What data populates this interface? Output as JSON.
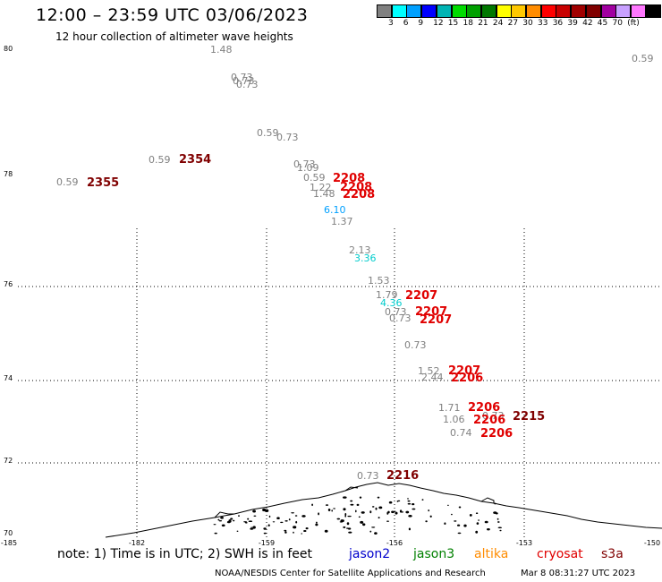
{
  "header": {
    "title": "12:00 – 23:59 UTC 03/06/2023",
    "subtitle": "12 hour collection of altimeter wave heights"
  },
  "colorbar": {
    "colors": [
      "#808080",
      "#00ffff",
      "#00a0ff",
      "#0000ff",
      "#00b4b4",
      "#00dc00",
      "#00a000",
      "#007800",
      "#ffff00",
      "#ffc800",
      "#ff8c00",
      "#ff0000",
      "#c80000",
      "#a00000",
      "#800000",
      "#a000a0",
      "#c8a0ff",
      "#ff78ff",
      "#000000"
    ],
    "labels": [
      "3",
      "6",
      "9",
      "12",
      "15",
      "18",
      "21",
      "24",
      "27",
      "30",
      "33",
      "36",
      "39",
      "42",
      "45",
      "70",
      "(ft)"
    ]
  },
  "map": {
    "lat_labels": [
      "80",
      "78",
      "76",
      "74",
      "72",
      "70"
    ],
    "lon_labels": [
      "-185",
      "-182",
      "-159",
      "-156",
      "-153",
      "-150"
    ]
  },
  "chart_data": {
    "type": "scatter",
    "heights_ft": [
      {
        "text": "1.48",
        "color": "#808080"
      },
      {
        "text": "0.59",
        "color": "#808080"
      },
      {
        "text": "0.73",
        "color": "#808080"
      },
      {
        "text": "0.73",
        "color": "#808080"
      },
      {
        "text": "0.73",
        "color": "#808080"
      },
      {
        "text": "0.59",
        "color": "#808080"
      },
      {
        "text": "0.73",
        "color": "#808080"
      },
      {
        "text": "0.59",
        "color": "#808080"
      },
      {
        "text": "0.73",
        "color": "#808080"
      },
      {
        "text": "1.09",
        "color": "#808080"
      },
      {
        "text": "0.59",
        "color": "#808080"
      },
      {
        "text": "1.22",
        "color": "#808080"
      },
      {
        "text": "1.48",
        "color": "#808080"
      },
      {
        "text": "6.10",
        "color": "#00a0ff"
      },
      {
        "text": "1.37",
        "color": "#808080"
      },
      {
        "text": "2.13",
        "color": "#808080"
      },
      {
        "text": "3.36",
        "color": "#00cccc"
      },
      {
        "text": "1.53",
        "color": "#808080"
      },
      {
        "text": "1.79",
        "color": "#808080"
      },
      {
        "text": "4.36",
        "color": "#00cccc"
      },
      {
        "text": "0.73",
        "color": "#808080"
      },
      {
        "text": "0.73",
        "color": "#808080"
      },
      {
        "text": "0.73",
        "color": "#808080"
      },
      {
        "text": "1.52",
        "color": "#808080"
      },
      {
        "text": "2.44",
        "color": "#808080"
      },
      {
        "text": "1.71",
        "color": "#808080"
      },
      {
        "text": "1.06",
        "color": "#808080"
      },
      {
        "text": "0.74",
        "color": "#808080"
      },
      {
        "text": "0.73",
        "color": "#808080"
      },
      {
        "text": "0.73",
        "color": "#808080"
      },
      {
        "text": "0.59",
        "color": "#808080"
      }
    ],
    "times_utc": [
      {
        "text": "2354",
        "color": "#800000"
      },
      {
        "text": "2355",
        "color": "#800000"
      },
      {
        "text": "2208",
        "color": "#e00000"
      },
      {
        "text": "2208",
        "color": "#e00000"
      },
      {
        "text": "2208",
        "color": "#e00000"
      },
      {
        "text": "2207",
        "color": "#e00000"
      },
      {
        "text": "2207",
        "color": "#e00000"
      },
      {
        "text": "2207",
        "color": "#e00000"
      },
      {
        "text": "2207",
        "color": "#e00000"
      },
      {
        "text": "2206",
        "color": "#e00000"
      },
      {
        "text": "2206",
        "color": "#e00000"
      },
      {
        "text": "2206",
        "color": "#e00000"
      },
      {
        "text": "2206",
        "color": "#e00000"
      },
      {
        "text": "2215",
        "color": "#800000"
      },
      {
        "text": "2216",
        "color": "#800000"
      }
    ]
  },
  "footer": {
    "note": "note:  1) Time is in UTC; 2) SWH is in feet",
    "satellites": [
      {
        "name": "jason2",
        "color": "#0000cc"
      },
      {
        "name": "jason3",
        "color": "#008000"
      },
      {
        "name": "altika",
        "color": "#ff8c00"
      },
      {
        "name": "cryosat",
        "color": "#e00000"
      },
      {
        "name": "s3a",
        "color": "#800000"
      }
    ],
    "credit": "NOAA/NESDIS Center for Satellite Applications and Research",
    "timestamp": "Mar  8 08:31:27 UTC 2023"
  }
}
